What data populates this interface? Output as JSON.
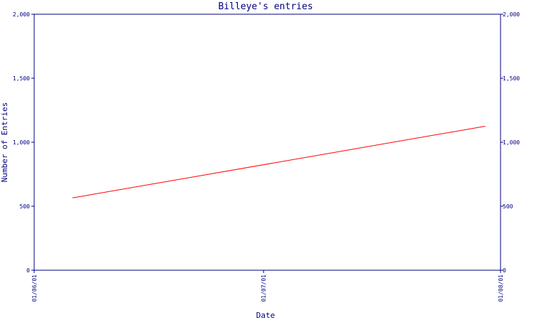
{
  "colors": {
    "axis": "#000080",
    "series": "#ff0000",
    "background": "#ffffff"
  },
  "chart_data": {
    "type": "line",
    "title": "Billeye's entries",
    "xlabel": "Date",
    "ylabel": "Number of Entries",
    "x_ticks": [
      "01/06/01",
      "01/07/01",
      "01/08/01"
    ],
    "y_ticks": [
      "0",
      "500",
      "1,000",
      "1,500",
      "2,000"
    ],
    "y_tick_values": [
      0,
      500,
      1000,
      1500,
      2000
    ],
    "ylim": [
      0,
      2000
    ],
    "xlim": [
      "2001-06-01",
      "2001-08-01"
    ],
    "grid": false,
    "y_axis_both_sides": true,
    "series": [
      {
        "points": [
          {
            "x": "2001-06-06",
            "y": 565
          },
          {
            "x": "2001-07-30",
            "y": 1125
          }
        ]
      }
    ]
  }
}
